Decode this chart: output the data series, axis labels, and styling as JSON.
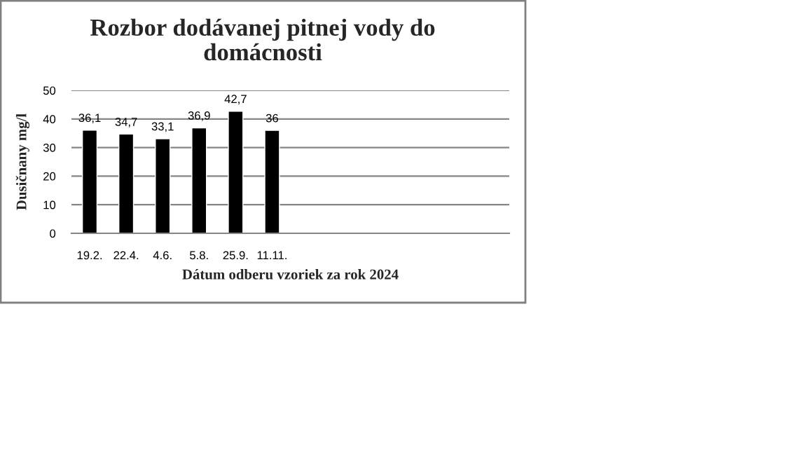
{
  "chart_data": {
    "type": "bar",
    "title": "Rozbor dodávanej pitnej vody do\ndomácnosti",
    "xlabel": "Dátum odberu vzoriek za rok 2024",
    "ylabel": "Dusičnany mg/l",
    "categories": [
      "19.2.",
      "22.4.",
      "4.6.",
      "5.8.",
      "25.9.",
      "11.11.",
      null,
      null,
      null,
      null,
      null,
      null
    ],
    "values": [
      36.1,
      34.7,
      33.1,
      36.9,
      42.7,
      36,
      null,
      null,
      null,
      null,
      null,
      null
    ],
    "value_labels": [
      "36,1",
      "34,7",
      "33,1",
      "36,9",
      "42,7",
      "36",
      null,
      null,
      null,
      null,
      null,
      null
    ],
    "color": "#000000",
    "ylim": [
      0,
      50
    ],
    "yticks": [
      0,
      10,
      20,
      30,
      40,
      50
    ],
    "grid": "y"
  }
}
